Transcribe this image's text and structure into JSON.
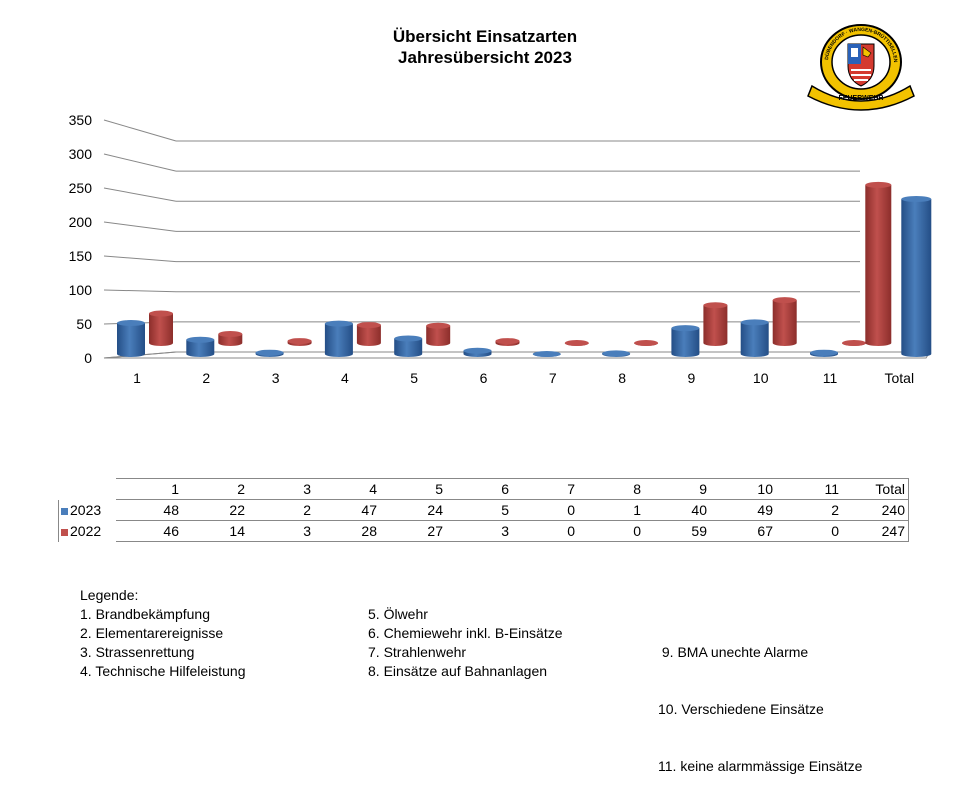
{
  "title_line1": "Übersicht Einsatzarten",
  "title_line2": "Jahresübersicht 2023",
  "logo": {
    "ring_text_top": "DÜBENDORF · WANGEN-BRÜTTISELLEN",
    "ribbon_text": "FEUERWEHR"
  },
  "colors": {
    "s2023": "#4a7ebb",
    "s2022": "#c0504d"
  },
  "chart_data": {
    "type": "bar",
    "categories": [
      "1",
      "2",
      "3",
      "4",
      "5",
      "6",
      "7",
      "8",
      "9",
      "10",
      "11",
      "Total"
    ],
    "ylim": [
      0,
      350
    ],
    "yticks": [
      "0",
      "50",
      "100",
      "150",
      "200",
      "250",
      "300",
      "350"
    ],
    "series": [
      {
        "name": "2023",
        "values": [
          48,
          22,
          2,
          47,
          24,
          5,
          0,
          1,
          40,
          49,
          2,
          240
        ]
      },
      {
        "name": "2022",
        "values": [
          46,
          14,
          3,
          28,
          27,
          3,
          0,
          0,
          59,
          67,
          0,
          247
        ]
      }
    ],
    "grid": true
  },
  "table": {
    "header": [
      "1",
      "2",
      "3",
      "4",
      "5",
      "6",
      "7",
      "8",
      "9",
      "10",
      "11",
      "Total"
    ],
    "rows": [
      {
        "label": "2023",
        "cells": [
          "48",
          "22",
          "2",
          "47",
          "24",
          "5",
          "0",
          "1",
          "40",
          "49",
          "2",
          "240"
        ]
      },
      {
        "label": "2022",
        "cells": [
          "46",
          "14",
          "3",
          "28",
          "27",
          "3",
          "0",
          "0",
          "59",
          "67",
          "0",
          "247"
        ]
      }
    ]
  },
  "legend": {
    "title": "Legende:",
    "col1": [
      "1.  Brandbekämpfung",
      "2.  Elementarereignisse",
      "3.  Strassenrettung",
      "4.  Technische Hilfeleistung"
    ],
    "col2": [
      "5. Ölwehr",
      "6. Chemiewehr inkl. B-Einsätze",
      "7. Strahlenwehr",
      "8. Einsätze auf Bahnanlagen"
    ],
    "col3": [
      " 9. BMA unechte Alarme",
      "10. Verschiedene Einsätze",
      "11. keine alarmmässige Einsätze"
    ]
  }
}
